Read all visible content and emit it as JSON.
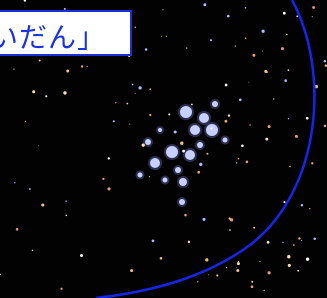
{
  "label": {
    "text": "いだん」"
  }
}
